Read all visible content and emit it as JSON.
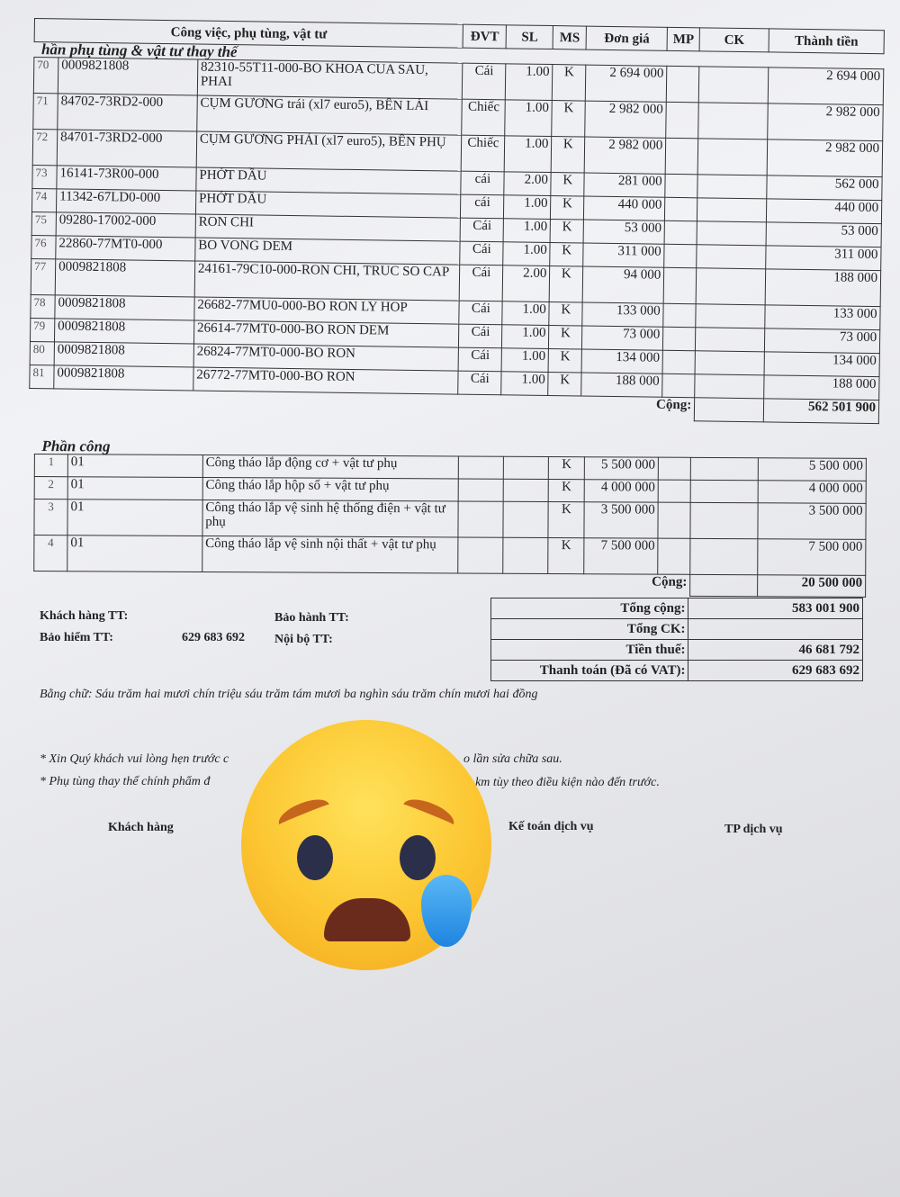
{
  "header": {
    "description": "Công việc, phụ tùng, vật tư",
    "dvt": "ĐVT",
    "sl": "SL",
    "ms": "MS",
    "don_gia": "Đơn giá",
    "mp": "MP",
    "ck": "CK",
    "thanh_tien": "Thành tiền"
  },
  "parts_section": "hần phụ tùng & vật tư thay thế",
  "parts": [
    {
      "stt": "70",
      "code": "0009821808",
      "desc": "82310-55T11-000-BO KHOA CUA SAU, PHAI",
      "dvt": "Cái",
      "sl": "1.00",
      "ms": "K",
      "price": "2 694 000",
      "total": "2 694 000"
    },
    {
      "stt": "71",
      "code": "84702-73RD2-000",
      "desc": "CỤM GƯƠNG trái (xl7 euro5), BÊN LÁI",
      "dvt": "Chiếc",
      "sl": "1.00",
      "ms": "K",
      "price": "2 982 000",
      "total": "2 982 000"
    },
    {
      "stt": "72",
      "code": "84701-73RD2-000",
      "desc": "CỤM GƯƠNG PHẢI (xl7 euro5), BÊN PHỤ",
      "dvt": "Chiếc",
      "sl": "1.00",
      "ms": "K",
      "price": "2 982 000",
      "total": "2 982 000"
    },
    {
      "stt": "73",
      "code": "16141-73R00-000",
      "desc": "PHỚT DẦU",
      "dvt": "cái",
      "sl": "2.00",
      "ms": "K",
      "price": "281 000",
      "total": "562 000"
    },
    {
      "stt": "74",
      "code": "11342-67LD0-000",
      "desc": "PHỚT DẦU",
      "dvt": "cái",
      "sl": "1.00",
      "ms": "K",
      "price": "440 000",
      "total": "440 000"
    },
    {
      "stt": "75",
      "code": "09280-17002-000",
      "desc": "RON CHI",
      "dvt": "Cái",
      "sl": "1.00",
      "ms": "K",
      "price": "53 000",
      "total": "53 000"
    },
    {
      "stt": "76",
      "code": "22860-77MT0-000",
      "desc": "BO VONG DEM",
      "dvt": "Cái",
      "sl": "1.00",
      "ms": "K",
      "price": "311 000",
      "total": "311 000"
    },
    {
      "stt": "77",
      "code": "0009821808",
      "desc": "24161-79C10-000-RON CHI, TRUC SO CAP",
      "dvt": "Cái",
      "sl": "2.00",
      "ms": "K",
      "price": "94 000",
      "total": "188 000"
    },
    {
      "stt": "78",
      "code": "0009821808",
      "desc": "26682-77MU0-000-BO RON LY HOP",
      "dvt": "Cái",
      "sl": "1.00",
      "ms": "K",
      "price": "133 000",
      "total": "133 000"
    },
    {
      "stt": "79",
      "code": "0009821808",
      "desc": "26614-77MT0-000-BO RON DEM",
      "dvt": "Cái",
      "sl": "1.00",
      "ms": "K",
      "price": "73 000",
      "total": "73 000"
    },
    {
      "stt": "80",
      "code": "0009821808",
      "desc": "26824-77MT0-000-BO RON",
      "dvt": "Cái",
      "sl": "1.00",
      "ms": "K",
      "price": "134 000",
      "total": "134 000"
    },
    {
      "stt": "81",
      "code": "0009821808",
      "desc": "26772-77MT0-000-BO RON",
      "dvt": "Cái",
      "sl": "1.00",
      "ms": "K",
      "price": "188 000",
      "total": "188 000"
    }
  ],
  "parts_total": {
    "label": "Cộng:",
    "value": "562 501 900"
  },
  "labor_section": "Phần công",
  "labor": [
    {
      "stt": "1",
      "code": "01",
      "desc": "Công tháo lắp động cơ + vật tư phụ",
      "ms": "K",
      "price": "5 500 000",
      "total": "5 500 000"
    },
    {
      "stt": "2",
      "code": "01",
      "desc": "Công tháo lắp hộp số + vật tư phụ",
      "ms": "K",
      "price": "4 000 000",
      "total": "4 000 000"
    },
    {
      "stt": "3",
      "code": "01",
      "desc": "Công tháo lắp vệ sinh hệ thống điện + vật tư phụ",
      "ms": "K",
      "price": "3 500 000",
      "total": "3 500 000"
    },
    {
      "stt": "4",
      "code": "01",
      "desc": "Công tháo lắp vệ sinh nội thất + vật tư phụ",
      "ms": "K",
      "price": "7 500 000",
      "total": "7 500 000"
    }
  ],
  "labor_total": {
    "label": "Cộng:",
    "value": "20 500 000"
  },
  "payment": {
    "khach_hang": "Khách hàng TT:",
    "bao_hiem": "Bảo hiểm TT:",
    "bao_hiem_value": "629 683 692",
    "bao_hanh": "Bảo hành TT:",
    "noi_bo": "Nội bộ TT:"
  },
  "summary": [
    {
      "label": "Tổng cộng:",
      "value": "583 001 900"
    },
    {
      "label": "Tổng CK:",
      "value": ""
    },
    {
      "label": "Tiền thuế:",
      "value": "46 681 792"
    },
    {
      "label": "Thanh toán (Đã có VAT):",
      "value": "629 683 692"
    }
  ],
  "in_words": "Bằng chữ: Sáu trăm hai mươi chín triệu sáu trăm tám mươi ba nghìn sáu trăm chín mươi hai đồng",
  "notes": [
    "* Xin Quý khách vui lòng hẹn trước c",
    "o lần sửa chữa sau.",
    "* Phụ tùng thay thế chính phẩm đ",
    "km tùy theo điều kiện nào đến trước."
  ],
  "signatures": [
    "Khách hàng",
    "Kế toán dịch vụ",
    "TP dịch vụ"
  ],
  "overlay_icon": "crying-face-emoji"
}
